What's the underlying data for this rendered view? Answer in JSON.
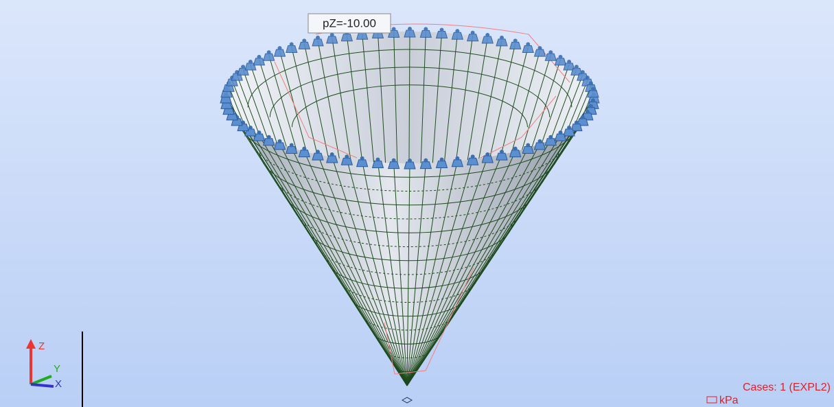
{
  "viewport": {
    "load_label": "pZ=-10.00",
    "cases": "Cases: 1 (EXPL2)",
    "unit": "kPa",
    "axes": {
      "z": "Z",
      "y": "Y",
      "x": "X"
    }
  }
}
